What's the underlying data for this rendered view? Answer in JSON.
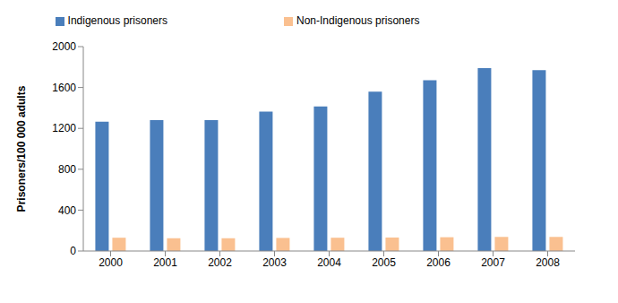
{
  "chart_data": {
    "type": "bar",
    "y_label": "Prisoners/100 000 adults",
    "categories": [
      "2000",
      "2001",
      "2002",
      "2003",
      "2004",
      "2005",
      "2006",
      "2007",
      "2008"
    ],
    "series": [
      {
        "name": "Indigenous prisoners",
        "color": "#4a7ebb",
        "values": [
          1265,
          1280,
          1280,
          1365,
          1415,
          1560,
          1670,
          1790,
          1770
        ]
      },
      {
        "name": "Non-Indigenous prisoners",
        "color": "#fac090",
        "values": [
          130,
          125,
          125,
          128,
          130,
          132,
          135,
          138,
          138
        ]
      }
    ],
    "ylim": [
      0,
      2000
    ],
    "yticks": [
      0,
      400,
      800,
      1200,
      1600,
      2000
    ],
    "grid": false,
    "legend": "top"
  }
}
